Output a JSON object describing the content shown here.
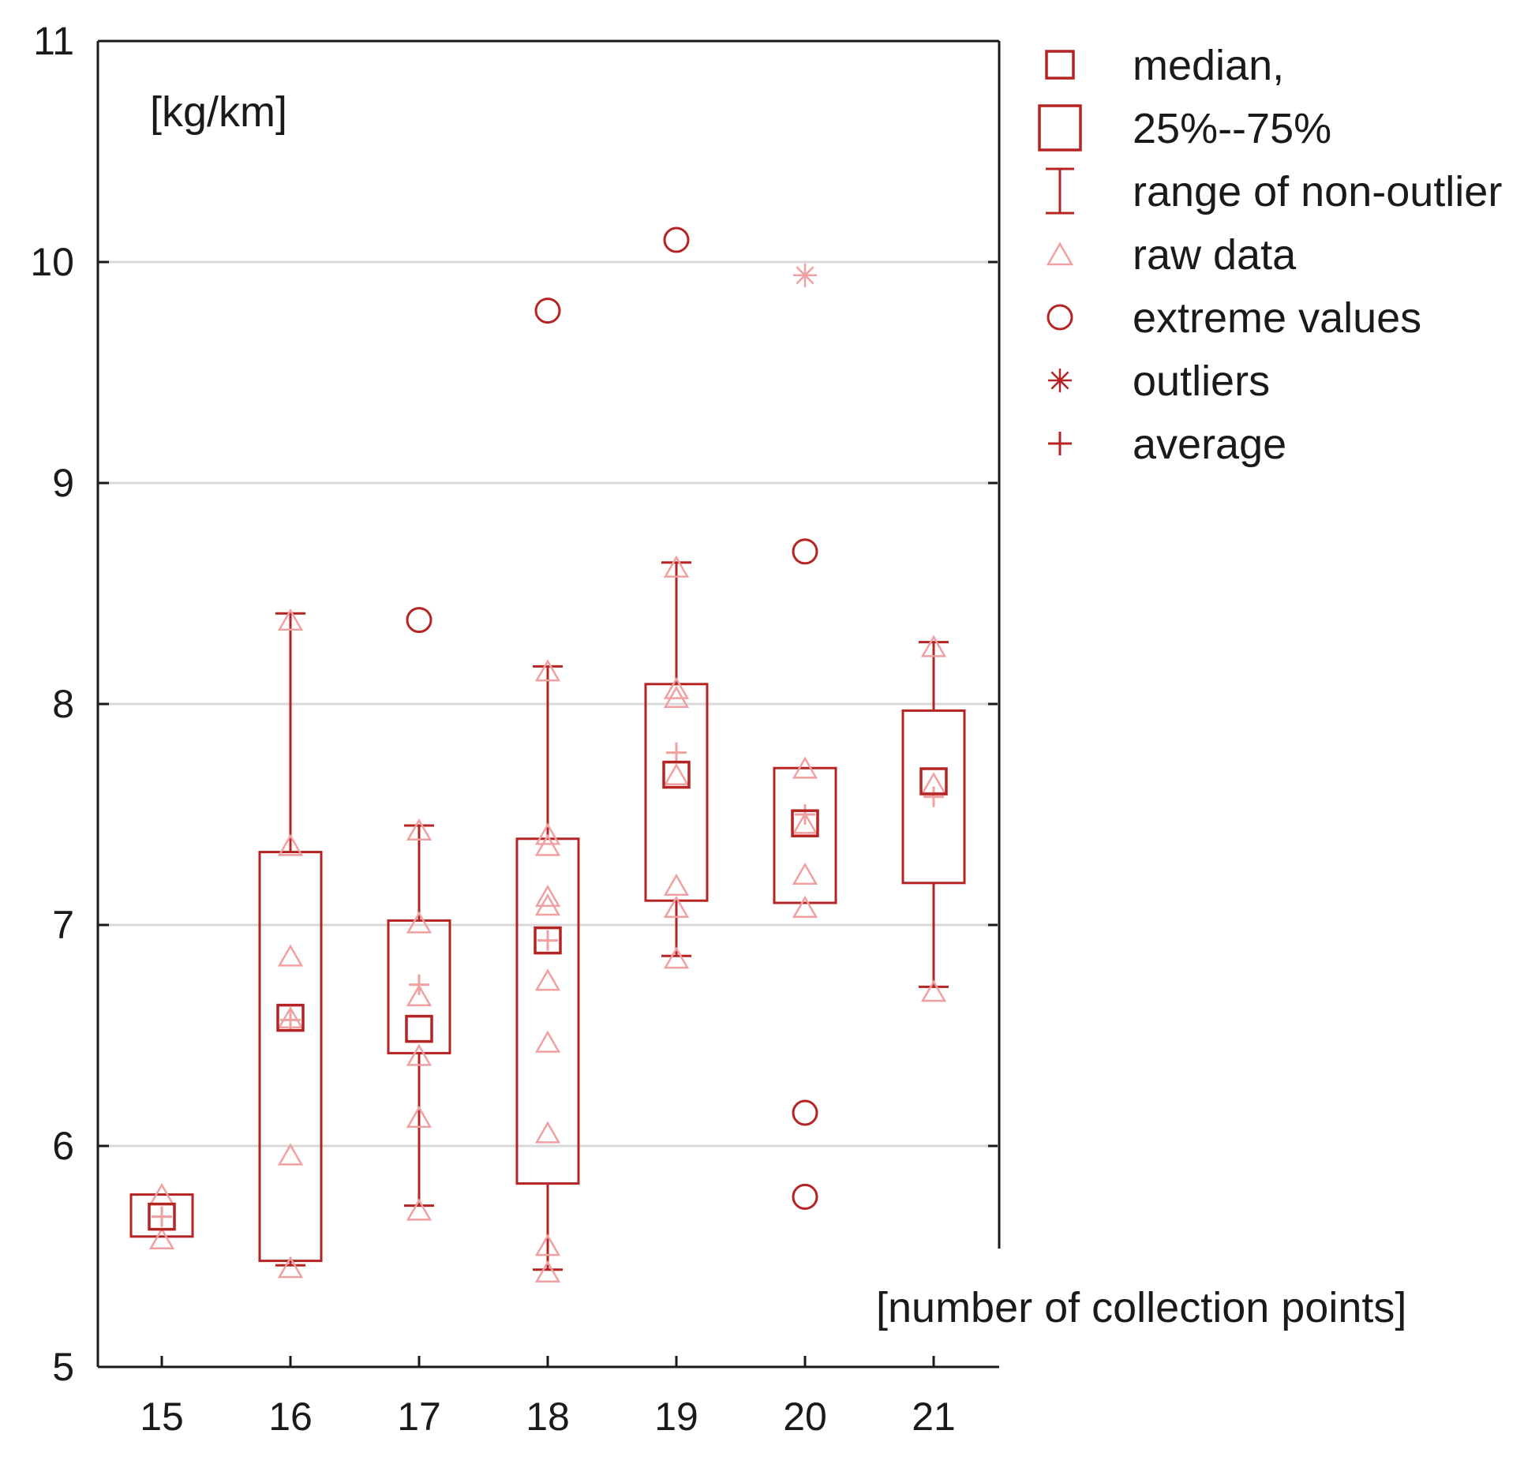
{
  "chart_data": {
    "type": "boxplot",
    "unit_label": "[kg/km]",
    "xlabel": "[number of collection points]",
    "ylabel": "",
    "ylim": [
      5,
      11
    ],
    "yticks": [
      5,
      6,
      7,
      8,
      9,
      10,
      11
    ],
    "grid": true,
    "legend_position": "top-right",
    "colors": {
      "main": "#b52323",
      "raw": "#f0a0a0",
      "grid": "#d9d9d9",
      "axis": "#1a1a1a"
    },
    "legend": [
      {
        "symbol": "median-square",
        "label": "median,"
      },
      {
        "symbol": "box",
        "label": "25%--75%"
      },
      {
        "symbol": "whisker",
        "label": "range of non-outlier"
      },
      {
        "symbol": "triangle",
        "label": "raw data"
      },
      {
        "symbol": "circle",
        "label": "extreme values"
      },
      {
        "symbol": "asterisk",
        "label": "outliers"
      },
      {
        "symbol": "plus",
        "label": "average"
      }
    ],
    "categories": [
      "15",
      "16",
      "17",
      "18",
      "19",
      "20",
      "21"
    ],
    "groups": [
      {
        "category": "15",
        "median": 5.68,
        "q1": 5.59,
        "q3": 5.78,
        "whisker_low": null,
        "whisker_high": null,
        "mean": 5.68,
        "raw": [
          5.58,
          5.78
        ],
        "extremes": [],
        "outliers": []
      },
      {
        "category": "16",
        "median": 6.58,
        "q1": 5.48,
        "q3": 7.33,
        "whisker_low": 5.46,
        "whisker_high": 8.41,
        "mean": 6.57,
        "raw": [
          5.45,
          5.96,
          6.58,
          6.86,
          7.36,
          8.38
        ],
        "extremes": [],
        "outliers": []
      },
      {
        "category": "17",
        "median": 6.53,
        "q1": 6.42,
        "q3": 7.02,
        "whisker_low": 5.73,
        "whisker_high": 7.45,
        "mean": 6.73,
        "raw": [
          5.71,
          6.13,
          6.41,
          6.68,
          7.01,
          7.43
        ],
        "extremes": [
          8.38
        ],
        "outliers": []
      },
      {
        "category": "18",
        "median": 6.93,
        "q1": 5.83,
        "q3": 7.39,
        "whisker_low": 5.44,
        "whisker_high": 8.17,
        "mean": 6.93,
        "raw": [
          5.43,
          5.55,
          6.06,
          6.47,
          6.75,
          7.09,
          7.13,
          7.36,
          7.41,
          8.15
        ],
        "extremes": [
          9.78
        ],
        "outliers": []
      },
      {
        "category": "19",
        "median": 7.68,
        "q1": 7.11,
        "q3": 8.09,
        "whisker_low": 6.86,
        "whisker_high": 8.64,
        "mean": 7.78,
        "raw": [
          6.85,
          7.08,
          7.18,
          7.68,
          8.03,
          8.07,
          8.62
        ],
        "extremes": [
          10.1
        ],
        "outliers": []
      },
      {
        "category": "20",
        "median": 7.46,
        "q1": 7.1,
        "q3": 7.71,
        "whisker_low": null,
        "whisker_high": null,
        "mean": 7.5,
        "raw": [
          7.08,
          7.23,
          7.46,
          7.71
        ],
        "extremes": [
          8.69,
          6.15,
          5.77
        ],
        "outliers": [
          9.94
        ]
      },
      {
        "category": "21",
        "median": 7.65,
        "q1": 7.19,
        "q3": 7.97,
        "whisker_low": 6.72,
        "whisker_high": 8.28,
        "mean": 7.58,
        "raw": [
          6.7,
          7.64,
          8.26
        ],
        "extremes": [],
        "outliers": []
      }
    ]
  }
}
